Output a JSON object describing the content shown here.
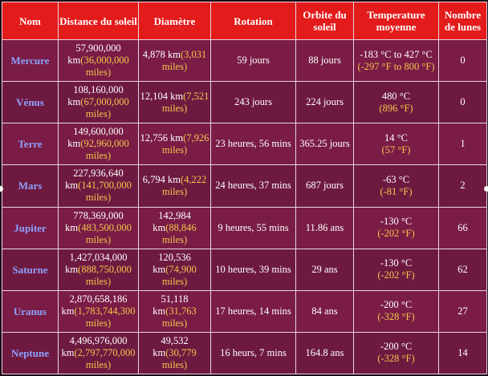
{
  "headers": {
    "name": "Nom",
    "distance": "Distance du soleil",
    "diameter": "Diamètre",
    "rotation": "Rotation",
    "orbit": "Orbite du soleil",
    "temperature": "Temperature moyenne",
    "moons": "Nombre de lunes"
  },
  "colors": {
    "header_bg": "#e31b1b",
    "row_bg": "#7a1c45",
    "planet_name": "#8fa0ff",
    "secondary_unit": "#f3c64c"
  },
  "rows": [
    {
      "name": "Mercure",
      "distance_km": "57,900,000 km",
      "distance_miles": "(36,000,000 miles)",
      "diameter_km": "4,878 km",
      "diameter_miles": "(3,031 miles)",
      "rotation": "59 jours",
      "orbit": "88 jours",
      "temp_c": "-183 °C to 427 °C",
      "temp_f": "(-297 °F to 800 °F)",
      "moons": "0"
    },
    {
      "name": "Vénus",
      "distance_km": "108,160,000 km",
      "distance_miles": "(67,000,000 miles)",
      "diameter_km": "12,104 km",
      "diameter_miles": "(7,521 miles)",
      "rotation": "243 jours",
      "orbit": "224 jours",
      "temp_c": "480 °C",
      "temp_f": "(896 °F)",
      "moons": "0"
    },
    {
      "name": "Terre",
      "distance_km": "149,600,000 km",
      "distance_miles": "(92,960,000 miles)",
      "diameter_km": "12,756 km",
      "diameter_miles": "(7,926 miles)",
      "rotation": "23 heures, 56 mins",
      "orbit": "365.25 jours",
      "temp_c": "14 °C",
      "temp_f": "(57 °F)",
      "moons": "1"
    },
    {
      "name": "Mars",
      "distance_km": "227,936,640 km",
      "distance_miles": "(141,700,000 miles)",
      "diameter_km": "6,794 km",
      "diameter_miles": "(4,222 miles)",
      "rotation": "24 heures, 37 mins",
      "orbit": "687 jours",
      "temp_c": "-63 °C",
      "temp_f": "(-81 °F)",
      "moons": "2"
    },
    {
      "name": "Jupiter",
      "distance_km": "778,369,000 km",
      "distance_miles": "(483,500,000 miles)",
      "diameter_km": "142,984 km",
      "diameter_miles": "(88,846 miles)",
      "rotation": "9 heures, 55 mins",
      "orbit": "11.86 ans",
      "temp_c": "-130 °C",
      "temp_f": "(-202 °F)",
      "moons": "66"
    },
    {
      "name": "Saturne",
      "distance_km": "1,427,034,000 km",
      "distance_miles": "(888,750,000 miles)",
      "diameter_km": "120,536 km",
      "diameter_miles": "(74,900 miles)",
      "rotation": "10 heures, 39 mins",
      "orbit": "29 ans",
      "temp_c": "-130 °C",
      "temp_f": "(-202 °F)",
      "moons": "62"
    },
    {
      "name": "Uranus",
      "distance_km": "2,870,658,186 km",
      "distance_miles": "(1,783,744,300 miles)",
      "diameter_km": "51,118 km",
      "diameter_miles": "(31,763 miles)",
      "rotation": "17 heures, 14 mins",
      "orbit": "84 ans",
      "temp_c": "-200 °C",
      "temp_f": "(-328 °F)",
      "moons": "27"
    },
    {
      "name": "Neptune",
      "distance_km": "4,496,976,000 km",
      "distance_miles": "(2,797,770,000 miles)",
      "diameter_km": "49,532 km",
      "diameter_miles": "(30,779 miles)",
      "rotation": "16 heurs, 7 mins",
      "orbit": "164.8 ans",
      "temp_c": "-200 °C",
      "temp_f": "(-328 °F)",
      "moons": "14"
    }
  ]
}
